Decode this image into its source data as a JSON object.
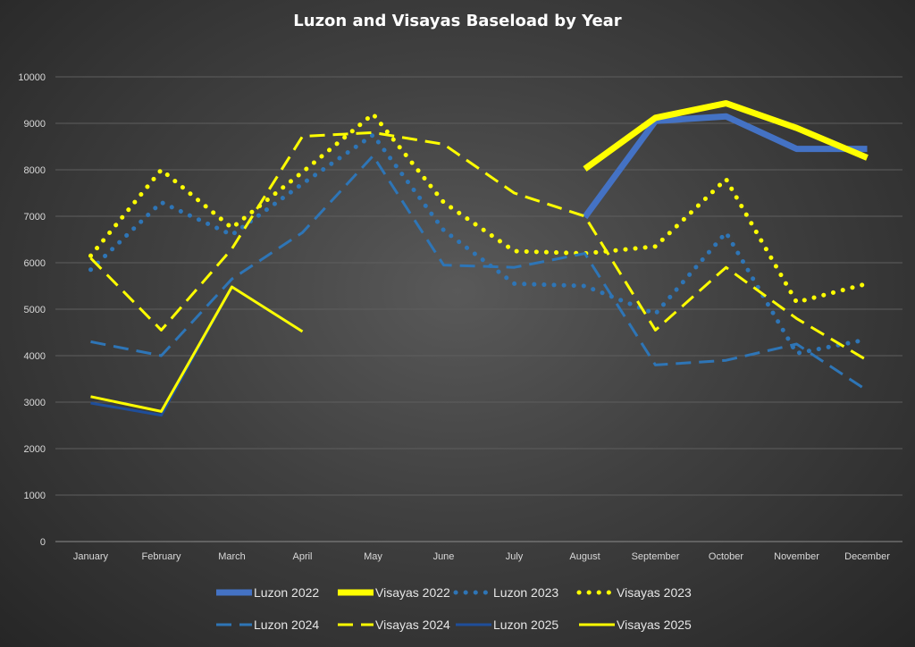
{
  "chart_data": {
    "type": "line",
    "title": "Luzon and Visayas Baseload by Year",
    "xlabel": "",
    "ylabel": "",
    "categories": [
      "January",
      "February",
      "March",
      "April",
      "May",
      "June",
      "July",
      "August",
      "September",
      "October",
      "November",
      "December"
    ],
    "ylim": [
      0,
      10000
    ],
    "yticks": [
      0,
      1000,
      2000,
      3000,
      4000,
      5000,
      6000,
      7000,
      8000,
      9000,
      10000
    ],
    "grid": true,
    "legend": "bottom",
    "series": [
      {
        "name": "Luzon 2022",
        "color": "#4472c4",
        "style": "solid-thick",
        "values": [
          null,
          null,
          null,
          null,
          null,
          null,
          null,
          6980,
          9050,
          9150,
          8450,
          8450
        ]
      },
      {
        "name": "Visayas 2022",
        "color": "#ffff00",
        "style": "solid-thick",
        "values": [
          null,
          null,
          null,
          null,
          null,
          null,
          null,
          8020,
          9120,
          9430,
          8900,
          8260
        ]
      },
      {
        "name": "Luzon 2023",
        "color": "#2e75b6",
        "style": "dotted",
        "values": [
          5850,
          7300,
          6600,
          7700,
          8750,
          6700,
          5550,
          5500,
          4900,
          6650,
          4050,
          4350
        ]
      },
      {
        "name": "Visayas 2023",
        "color": "#ffff00",
        "style": "dotted",
        "values": [
          6150,
          8000,
          6750,
          7950,
          9200,
          7300,
          6250,
          6200,
          6350,
          7800,
          5150,
          5550
        ]
      },
      {
        "name": "Luzon 2024",
        "color": "#2e75b6",
        "style": "dashed",
        "values": [
          4300,
          4000,
          5650,
          6650,
          8300,
          5950,
          5900,
          6200,
          3800,
          3900,
          4250,
          3250
        ]
      },
      {
        "name": "Visayas 2024",
        "color": "#ffff00",
        "style": "dashed",
        "values": [
          6100,
          4550,
          6300,
          8720,
          8800,
          8550,
          7500,
          7000,
          4550,
          5900,
          4800,
          3900
        ]
      },
      {
        "name": "Luzon 2025",
        "color": "#1f4e9a",
        "style": "solid",
        "values": [
          2980,
          2720,
          5480,
          4520,
          null,
          null,
          null,
          null,
          null,
          null,
          null,
          null
        ]
      },
      {
        "name": "Visayas 2025",
        "color": "#ffff00",
        "style": "solid",
        "values": [
          3120,
          2800,
          5480,
          4520,
          null,
          null,
          null,
          null,
          null,
          null,
          null,
          null
        ]
      }
    ]
  }
}
